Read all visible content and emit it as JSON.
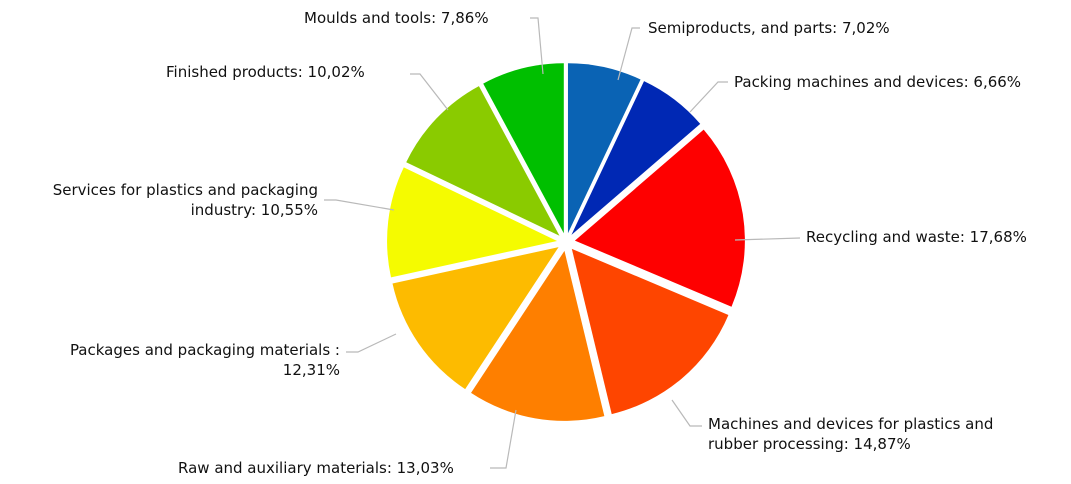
{
  "chart_data": {
    "type": "pie",
    "slices": [
      {
        "label_lines": [
          "Semiproducts, and parts: 7,02%"
        ],
        "value": 7.02,
        "color": "#0a63b4"
      },
      {
        "label_lines": [
          "Packing machines and devices: 6,66%"
        ],
        "value": 6.66,
        "color": "#0028b4"
      },
      {
        "label_lines": [
          "Recycling and waste: 17,68%"
        ],
        "value": 17.68,
        "color": "#fe0000"
      },
      {
        "label_lines": [
          "Machines and devices for plastics and",
          "rubber processing: 14,87%"
        ],
        "value": 14.87,
        "color": "#fe4500"
      },
      {
        "label_lines": [
          "Raw and auxiliary materials: 13,03%"
        ],
        "value": 13.03,
        "color": "#fe7f00"
      },
      {
        "label_lines": [
          "Packages and packaging materials :",
          "12,31%"
        ],
        "value": 12.31,
        "color": "#fdbb00"
      },
      {
        "label_lines": [
          "Services for plastics and packaging",
          "industry: 10,55%"
        ],
        "value": 10.55,
        "color": "#f5fb00"
      },
      {
        "label_lines": [
          "Finished products: 10,02%"
        ],
        "value": 10.02,
        "color": "#8acb00"
      },
      {
        "label_lines": [
          "Moulds and tools: 7,86%"
        ],
        "value": 7.86,
        "color": "#00bf00"
      }
    ],
    "legend": "none"
  }
}
